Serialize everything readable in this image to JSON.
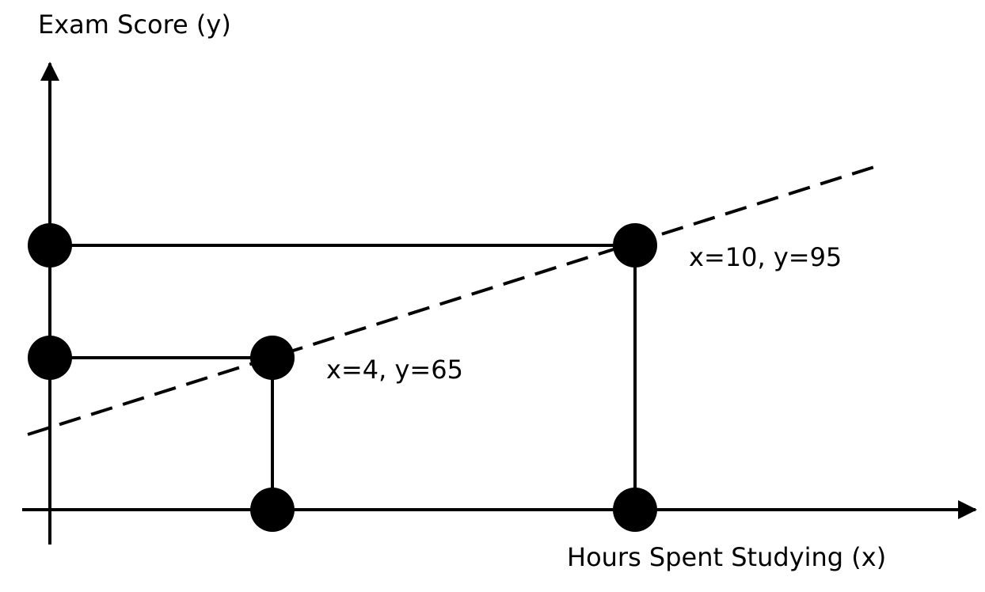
{
  "chart_data": {
    "type": "scatter",
    "xlabel": "Hours Spent Studying (x)",
    "ylabel": "Exam Score (y)",
    "points": [
      {
        "x": 4,
        "y": 65,
        "label": "x=4, y=65"
      },
      {
        "x": 10,
        "y": 95,
        "label": "x=10, y=95"
      }
    ],
    "fit_line": {
      "style": "dashed"
    },
    "grid": false,
    "legend": "none",
    "colors": {
      "ink": "#000000",
      "background": "#ffffff"
    }
  }
}
